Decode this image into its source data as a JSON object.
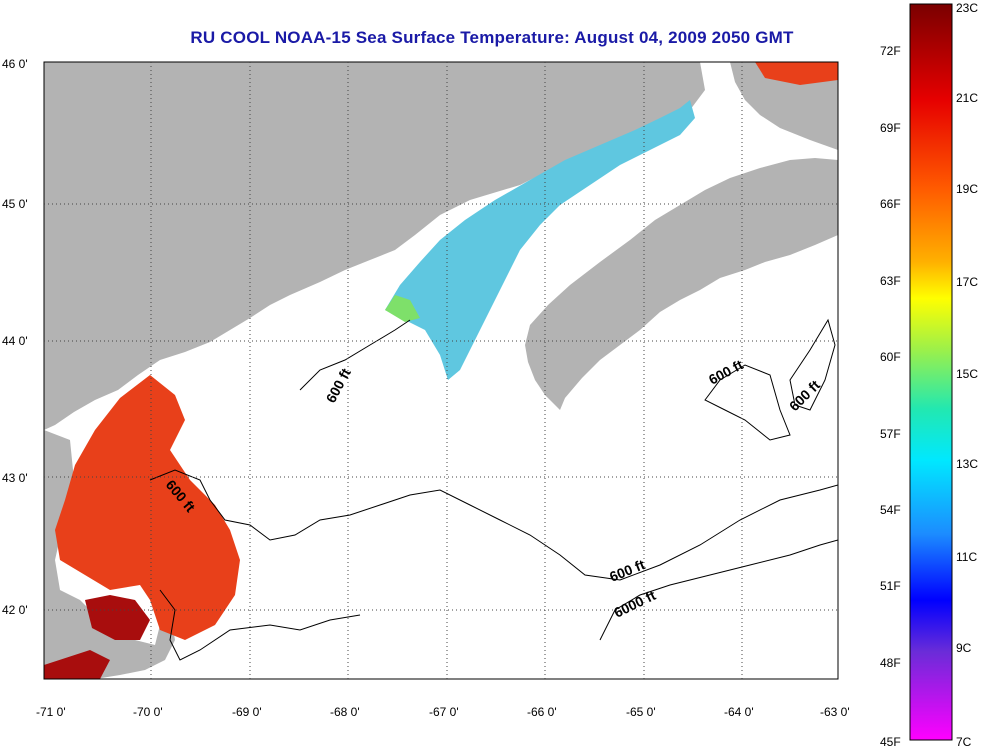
{
  "title": "RU COOL  NOAA-15  Sea Surface Temperature:  August 04, 2009 2050 GMT",
  "lat_labels": [
    "46 0'",
    "45 0'",
    "44 0'",
    "43 0'",
    "42 0'"
  ],
  "lon_labels": [
    "-71 0'",
    "-70 0'",
    "-69 0'",
    "-68 0'",
    "-67 0'",
    "-66 0'",
    "-65 0'",
    "-64 0'",
    "-63 0'"
  ],
  "colorbar": {
    "fahrenheit": [
      "72F",
      "69F",
      "66F",
      "63F",
      "60F",
      "57F",
      "54F",
      "51F",
      "48F",
      "45F"
    ],
    "celsius": [
      "23C",
      "21C",
      "19C",
      "17C",
      "15C",
      "13C",
      "11C",
      "9C",
      "7C"
    ]
  },
  "contour_labels": [
    "600 ft",
    "600 ft",
    "600 ft",
    "600 ft",
    "600 ft",
    "6000 ft"
  ],
  "colors": {
    "land": "#b3b3b3",
    "title": "#1a1aa6",
    "warm": "#e8401a",
    "hot": "#a80d0d",
    "cool": "#5fc7e0"
  }
}
